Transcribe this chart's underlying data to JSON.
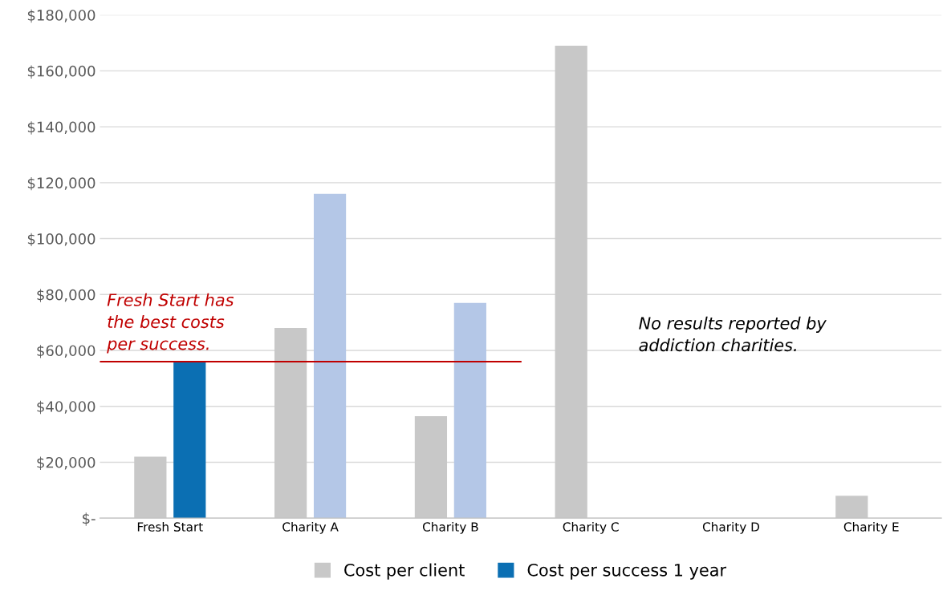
{
  "chart_data": {
    "type": "bar",
    "categories": [
      "Fresh Start",
      "Charity A",
      "Charity B",
      "Charity C",
      "Charity D",
      "Charity E"
    ],
    "series": [
      {
        "name": "Cost per client",
        "color": "#c8c8c8",
        "values": [
          22000,
          68000,
          36500,
          169000,
          null,
          8000
        ]
      },
      {
        "name": "Cost per success 1 year",
        "color": "#0b6fb3",
        "colors": [
          "#0b6fb3",
          "#b4c7e7",
          "#b4c7e7",
          "#b4c7e7",
          "#b4c7e7",
          "#b4c7e7"
        ],
        "values": [
          56000,
          116000,
          77000,
          null,
          null,
          null
        ]
      }
    ],
    "ylim": [
      0,
      180000
    ],
    "yticks": [
      {
        "value": 0,
        "label": "$-"
      },
      {
        "value": 20000,
        "label": "$20,000"
      },
      {
        "value": 40000,
        "label": "$40,000"
      },
      {
        "value": 60000,
        "label": "$60,000"
      },
      {
        "value": 80000,
        "label": "$80,000"
      },
      {
        "value": 100000,
        "label": "$100,000"
      },
      {
        "value": 120000,
        "label": "$120,000"
      },
      {
        "value": 140000,
        "label": "$140,000"
      },
      {
        "value": 160000,
        "label": "$160,000"
      },
      {
        "value": 180000,
        "label": "$180,000"
      }
    ],
    "ref_lines": [
      {
        "axis": "y",
        "value": 56000,
        "label": "Fresh Start has\nthe best costs\nper success.",
        "color": "#c00000"
      }
    ],
    "annotations": [
      "No results reported by\naddiction charities."
    ],
    "grid": "y",
    "legend": "bottom"
  }
}
